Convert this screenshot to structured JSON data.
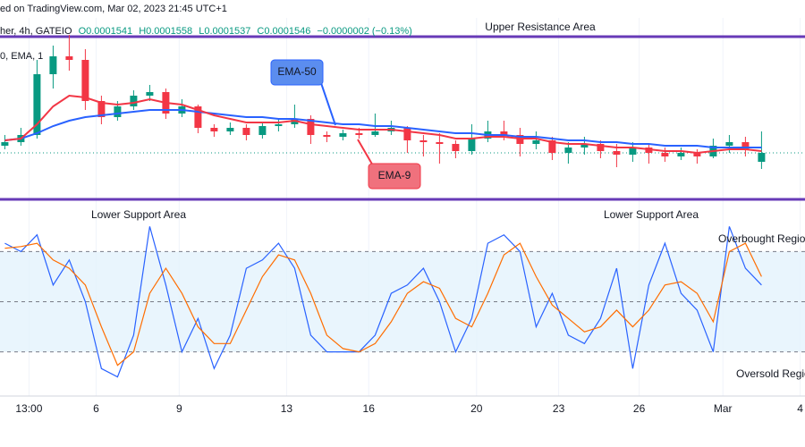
{
  "header": {
    "source": "ed on TradingView.com, Mar 02, 2023 21:45 UTC+1",
    "symbol": "her, 4h, GATEIO",
    "open": "O0.0001541",
    "high": "H0.0001558",
    "low": "L0.0001537",
    "close": "C0.0001546",
    "change": "−0.0000002 (−0.13%)",
    "indicator": "0, EMA, 1"
  },
  "chart_data": [
    {
      "type": "candlestick",
      "title": "Upper Resistance Area",
      "support_label": "Lower Support Area",
      "resistance_level": 0.0001611,
      "support_level": 0.000152,
      "ylim": [
        0.0001519,
        0.0001619
      ],
      "xlim": [
        -0.3,
        49.7
      ],
      "up_color": "#089981",
      "down_color": "#f23645",
      "level_color": "#673ab7",
      "open": [
        0.000155,
        0.0001552,
        0.0001556,
        0.000159,
        0.00016,
        0.0001598,
        0.0001575,
        0.0001566,
        0.0001572,
        0.0001578,
        0.000158,
        0.0001568,
        0.0001572,
        0.000156,
        0.0001558,
        0.000156,
        0.0001556,
        0.0001561,
        0.0001562,
        0.0001565,
        0.0001556,
        0.0001555,
        0.0001557,
        0.0001556,
        0.0001558,
        0.000156,
        0.0001553,
        0.0001552,
        0.0001551,
        0.0001547,
        0.0001554,
        0.0001558,
        0.0001556,
        0.0001551,
        0.0001553,
        0.0001546,
        0.0001549,
        0.0001551,
        0.0001547,
        0.0001545,
        0.0001549,
        0.0001546,
        0.0001544,
        0.0001546,
        0.0001544,
        0.000155,
        0.0001552,
        0.0001541
      ],
      "high": [
        0.0001556,
        0.000156,
        0.0001598,
        0.0001606,
        0.0001612,
        0.0001604,
        0.0001578,
        0.0001575,
        0.0001581,
        0.0001584,
        0.0001582,
        0.0001576,
        0.0001573,
        0.0001562,
        0.0001563,
        0.0001562,
        0.0001563,
        0.0001565,
        0.0001573,
        0.0001567,
        0.0001558,
        0.0001559,
        0.000156,
        0.0001568,
        0.0001564,
        0.0001561,
        0.0001556,
        0.0001557,
        0.0001553,
        0.0001562,
        0.0001564,
        0.0001564,
        0.000156,
        0.0001558,
        0.0001555,
        0.0001552,
        0.0001555,
        0.0001553,
        0.0001551,
        0.0001552,
        0.0001551,
        0.0001549,
        0.0001549,
        0.0001548,
        0.0001554,
        0.0001556,
        0.0001555,
        0.0001558
      ],
      "low": [
        0.0001548,
        0.000155,
        0.0001554,
        0.0001582,
        0.0001592,
        0.000157,
        0.0001562,
        0.0001564,
        0.000157,
        0.0001575,
        0.0001565,
        0.0001566,
        0.0001557,
        0.0001555,
        0.0001556,
        0.0001553,
        0.0001554,
        0.0001558,
        0.000156,
        0.0001551,
        0.0001552,
        0.0001553,
        0.0001554,
        0.0001555,
        0.0001556,
        0.0001546,
        0.0001544,
        0.000154,
        0.0001543,
        0.0001545,
        0.0001552,
        0.0001553,
        0.0001544,
        0.0001548,
        0.0001542,
        0.000154,
        0.0001545,
        0.0001543,
        0.0001538,
        0.0001541,
        0.000154,
        0.0001541,
        0.0001542,
        0.000154,
        0.0001543,
        0.0001546,
        0.0001544,
        0.0001537
      ],
      "close": [
        0.0001552,
        0.0001556,
        0.000159,
        0.00016,
        0.0001598,
        0.0001575,
        0.0001566,
        0.0001572,
        0.0001578,
        0.000158,
        0.0001568,
        0.0001572,
        0.000156,
        0.0001558,
        0.000156,
        0.0001556,
        0.0001561,
        0.0001562,
        0.0001565,
        0.0001556,
        0.0001555,
        0.0001557,
        0.0001556,
        0.0001558,
        0.000156,
        0.0001553,
        0.0001552,
        0.0001551,
        0.0001547,
        0.0001554,
        0.0001558,
        0.0001556,
        0.0001551,
        0.0001553,
        0.0001546,
        0.0001549,
        0.0001551,
        0.0001547,
        0.0001545,
        0.0001549,
        0.0001546,
        0.0001544,
        0.0001546,
        0.0001544,
        0.000155,
        0.0001552,
        0.0001548,
        0.0001546
      ],
      "series": [
        {
          "name": "EMA-50",
          "color": "#2962ff",
          "values": [
            0.0001553,
            0.0001554,
            0.0001557,
            0.0001561,
            0.0001564,
            0.0001566,
            0.0001567,
            0.0001568,
            0.0001569,
            0.000157,
            0.000157,
            0.000157,
            0.0001569,
            0.0001568,
            0.0001567,
            0.0001566,
            0.0001566,
            0.0001565,
            0.0001565,
            0.0001564,
            0.0001563,
            0.0001562,
            0.0001562,
            0.0001561,
            0.0001561,
            0.000156,
            0.0001559,
            0.0001558,
            0.0001557,
            0.0001557,
            0.0001556,
            0.0001556,
            0.0001555,
            0.0001555,
            0.0001554,
            0.0001553,
            0.0001553,
            0.0001552,
            0.0001552,
            0.0001551,
            0.0001551,
            0.000155,
            0.000155,
            0.000155,
            0.0001549,
            0.0001549,
            0.0001549,
            0.0001549
          ]
        },
        {
          "name": "EMA-9",
          "color": "#f23645",
          "values": [
            0.0001553,
            0.0001554,
            0.0001562,
            0.0001572,
            0.0001578,
            0.0001577,
            0.0001574,
            0.0001573,
            0.0001574,
            0.0001576,
            0.0001574,
            0.0001573,
            0.000157,
            0.0001567,
            0.0001565,
            0.0001563,
            0.0001563,
            0.0001563,
            0.0001564,
            0.0001562,
            0.0001561,
            0.000156,
            0.0001559,
            0.0001559,
            0.0001559,
            0.0001558,
            0.0001557,
            0.0001556,
            0.0001554,
            0.0001554,
            0.0001555,
            0.0001555,
            0.0001554,
            0.0001554,
            0.0001552,
            0.0001551,
            0.0001551,
            0.000155,
            0.0001549,
            0.0001549,
            0.0001548,
            0.0001547,
            0.0001547,
            0.0001546,
            0.0001547,
            0.0001548,
            0.0001548,
            0.0001547
          ]
        }
      ]
    },
    {
      "type": "line",
      "title": "Lower Support Area",
      "overbought_label": "Overbought Regio",
      "oversold_label": "Oversold Regio",
      "ylim": [
        0,
        100
      ],
      "xlim": [
        -0.3,
        49.7
      ],
      "levels": [
        80,
        50,
        20
      ],
      "band_color": "#e3f2fd",
      "xticks": [
        {
          "value": 1.5,
          "label": "13:00"
        },
        {
          "value": 5.67,
          "label": "6"
        },
        {
          "value": 10.83,
          "label": "9"
        },
        {
          "value": 17.5,
          "label": "13"
        },
        {
          "value": 22.6,
          "label": "16"
        },
        {
          "value": 29.3,
          "label": "20"
        },
        {
          "value": 34.4,
          "label": "23"
        },
        {
          "value": 39.4,
          "label": "26"
        },
        {
          "value": 44.6,
          "label": "Mar"
        },
        {
          "value": 49.4,
          "label": "4"
        }
      ],
      "series": [
        {
          "color": "#2962ff",
          "values": [
            85,
            80,
            90,
            60,
            75,
            50,
            10,
            5,
            30,
            95,
            60,
            20,
            40,
            10,
            30,
            70,
            75,
            85,
            70,
            30,
            20,
            20,
            20,
            30,
            55,
            60,
            70,
            50,
            20,
            40,
            85,
            90,
            80,
            35,
            55,
            30,
            25,
            40,
            70,
            10,
            60,
            85,
            55,
            45,
            20,
            95,
            70,
            60
          ]
        },
        {
          "color": "#ff6d00",
          "values": [
            82,
            83,
            85,
            75,
            70,
            60,
            35,
            12,
            20,
            55,
            70,
            55,
            35,
            25,
            25,
            45,
            65,
            78,
            75,
            55,
            30,
            22,
            20,
            25,
            38,
            55,
            62,
            58,
            40,
            35,
            55,
            78,
            85,
            65,
            48,
            40,
            32,
            35,
            45,
            35,
            45,
            60,
            62,
            55,
            38,
            80,
            85,
            65
          ]
        }
      ]
    }
  ]
}
